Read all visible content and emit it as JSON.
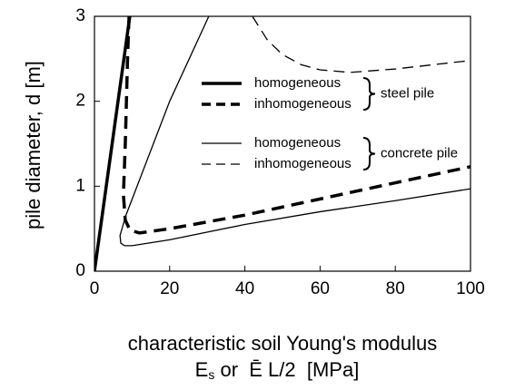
{
  "chart_data": {
    "type": "line",
    "y_label": "pile diameter, d [m]",
    "x_label": "characteristic soil Young's modulus",
    "x_label_line2": {
      "symbol": "E",
      "subscript": "s",
      "rest": " or  Ē L/2  [MPa]"
    },
    "xlim": [
      0,
      100
    ],
    "xticks": [
      0,
      20,
      40,
      60,
      80,
      100
    ],
    "ylim": [
      0,
      3
    ],
    "yticks": [
      0,
      1,
      2,
      3
    ],
    "legend_groups": [
      "steel pile",
      "concrete pile"
    ],
    "series": [
      {
        "name": "homogeneous",
        "color": "#000000",
        "style": "thick-solid",
        "x": [
          0,
          9.4
        ],
        "values": [
          0,
          3
        ]
      },
      {
        "name": "inhomogeneous",
        "color": "#000000",
        "style": "thick-dashed",
        "x": [
          9.2,
          8.8,
          8.2,
          7.7,
          8.2,
          9.5,
          12,
          20,
          40,
          60,
          80,
          100
        ],
        "values": [
          3,
          2.5,
          1.5,
          0.9,
          0.6,
          0.48,
          0.45,
          0.5,
          0.66,
          0.85,
          1.04,
          1.23
        ]
      },
      {
        "name": "homogeneous",
        "color": "#000000",
        "style": "thin-solid",
        "x": [
          30.4,
          20,
          8.3,
          6.8,
          7,
          8,
          10,
          20,
          40,
          60,
          80,
          100
        ],
        "values": [
          3,
          2,
          0.65,
          0.42,
          0.33,
          0.3,
          0.3,
          0.37,
          0.55,
          0.7,
          0.83,
          0.97
        ]
      },
      {
        "name": "inhomogeneous",
        "color": "#000000",
        "style": "thin-dashed",
        "x": [
          42,
          46,
          50,
          55,
          60,
          68,
          80,
          90,
          100
        ],
        "values": [
          3,
          2.72,
          2.55,
          2.43,
          2.37,
          2.34,
          2.38,
          2.43,
          2.48
        ]
      }
    ]
  }
}
